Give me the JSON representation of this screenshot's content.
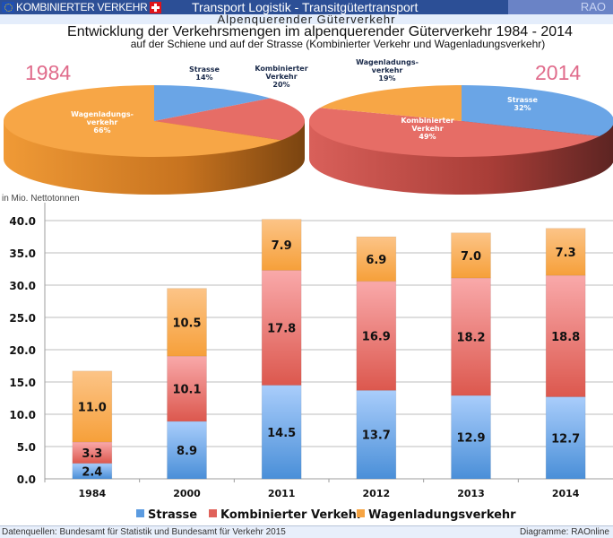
{
  "header": {
    "brand": "KOMBINIERTER VERKEHR",
    "title": "Transport Logistik - Transitgütertransport",
    "corner": "RAO",
    "subtitle": "Alpenquerender Güterverkehr",
    "headline": "Entwicklung der Verkehrsmengen im alpenquerender Güterverkehr 1984 - 2014",
    "subheadline": "auf der Schiene und auf der Strasse (Kombinierter Verkehr und Wagenladungsverkehr)"
  },
  "colors": {
    "strasse": "#5b9be0",
    "kombiniert": "#e0625a",
    "wagenladung": "#f6a443",
    "year_label": "#e06b8b"
  },
  "chart_data": [
    {
      "type": "pie",
      "title": "1984",
      "slices": [
        {
          "label": "Strasse",
          "value": 14,
          "display": "14%"
        },
        {
          "label": "Kombinierter Verkehr",
          "value": 20,
          "display": "20%"
        },
        {
          "label": "Wagenladungsverkehr",
          "value": 66,
          "display": "66%"
        }
      ],
      "label_lines": {
        "strasse": [
          "Strasse",
          "14%"
        ],
        "kombiniert": [
          "Kombinierter",
          "Verkehr",
          "20%"
        ],
        "wagenladung": [
          "Wagenladungs-",
          "verkehr",
          "66%"
        ]
      }
    },
    {
      "type": "pie",
      "title": "2014",
      "slices": [
        {
          "label": "Strasse",
          "value": 32,
          "display": "32%"
        },
        {
          "label": "Kombinierter Verkehr",
          "value": 49,
          "display": "49%"
        },
        {
          "label": "Wagenladungsverkehr",
          "value": 19,
          "display": "19%"
        }
      ],
      "label_lines": {
        "strasse": [
          "Strasse",
          "32%"
        ],
        "kombiniert": [
          "Kombinierter",
          "Verkehr",
          "49%"
        ],
        "wagenladung": [
          "Wagenladungs-",
          "verkehr",
          "19%"
        ]
      }
    },
    {
      "type": "bar",
      "stacked": true,
      "ylabel": "in Mio. Nettotonnen",
      "ylim": [
        0,
        40
      ],
      "yticks": [
        "0.0",
        "5.0",
        "10.0",
        "15.0",
        "20.0",
        "25.0",
        "30.0",
        "35.0",
        "40.0"
      ],
      "grid": true,
      "legend_position": "bottom",
      "categories": [
        "1984",
        "2000",
        "2011",
        "2012",
        "2013",
        "2014"
      ],
      "series": [
        {
          "name": "Strasse",
          "values": [
            2.4,
            8.9,
            14.5,
            13.7,
            12.9,
            12.7
          ]
        },
        {
          "name": "Kombinierter Verkehr",
          "values": [
            3.3,
            10.1,
            17.8,
            16.9,
            18.2,
            18.8
          ]
        },
        {
          "name": "Wagenladungsverkehr",
          "values": [
            11.0,
            10.5,
            7.9,
            6.9,
            7.0,
            7.3
          ]
        }
      ]
    }
  ],
  "footer": {
    "source": "Datenquellen: Bundesamt für Statistik und Bundesamt für Verkehr 2015",
    "credit": "Diagramme: RAOnline"
  }
}
